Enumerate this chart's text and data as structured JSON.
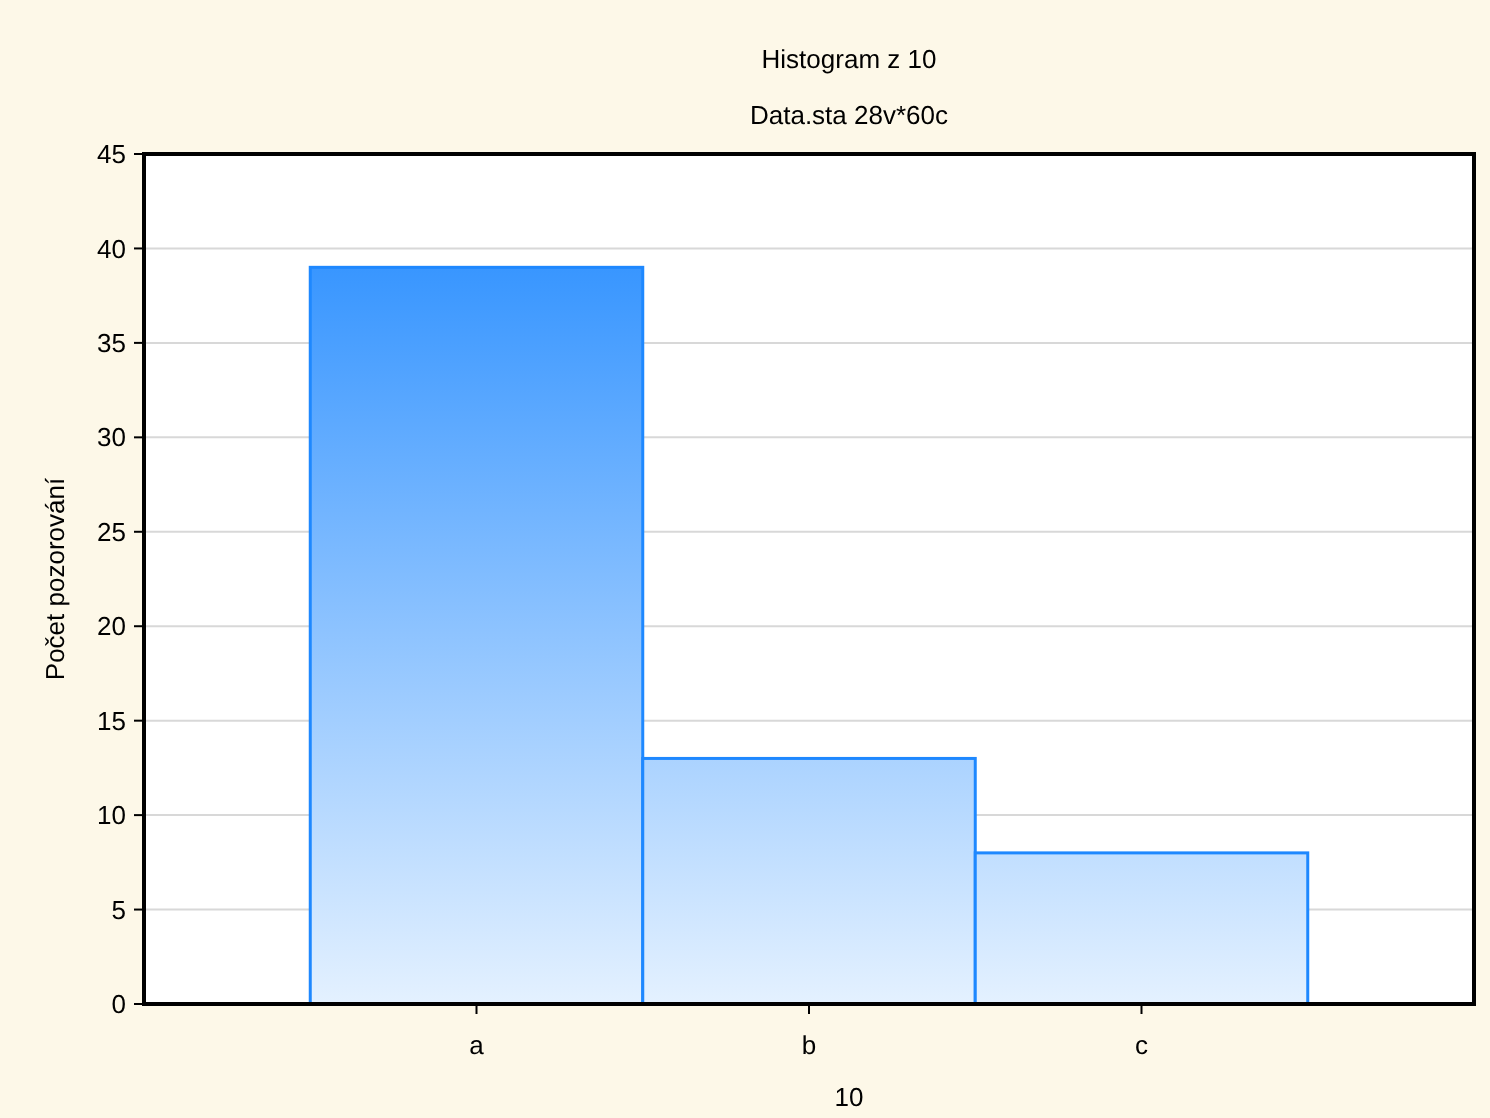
{
  "chart_data": {
    "type": "bar",
    "title": "Histogram z 10",
    "subtitle": "Data.sta 28v*60c",
    "xlabel": "10",
    "ylabel": "Počet pozorování",
    "categories": [
      "a",
      "b",
      "c"
    ],
    "values": [
      39,
      13,
      8
    ],
    "color": "#1e88ff",
    "ylim": [
      0,
      45
    ],
    "yticks": [
      0,
      5,
      10,
      15,
      20,
      25,
      30,
      35,
      40,
      45
    ],
    "grid": "y"
  }
}
